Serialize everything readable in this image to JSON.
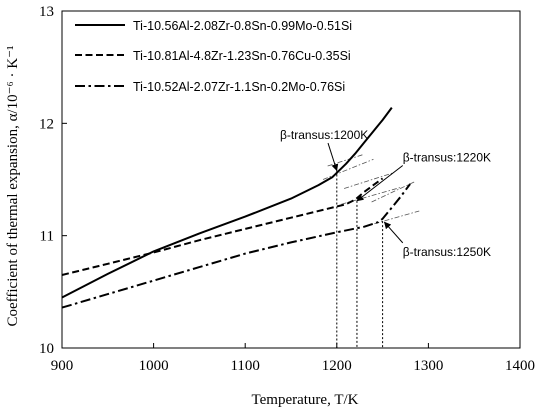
{
  "chart_data": {
    "type": "line",
    "xlabel": "Temperature, T/K",
    "ylabel": "Coefficient of thermal expansion, α/10⁻⁶ · K⁻¹",
    "xlim": [
      900,
      1400
    ],
    "ylim": [
      10,
      13
    ],
    "xticks": [
      900,
      1000,
      1100,
      1200,
      1300,
      1400
    ],
    "yticks": [
      10,
      11,
      12,
      13
    ],
    "grid": false,
    "legend_position": "top-left",
    "series": [
      {
        "name": "Ti-10.56Al-2.08Zr-0.8Sn-0.99Mo-0.51Si",
        "style": "solid",
        "x": [
          900,
          950,
          1000,
          1050,
          1100,
          1150,
          1180,
          1195,
          1200,
          1210,
          1220,
          1230,
          1240,
          1250,
          1260
        ],
        "y": [
          10.45,
          10.66,
          10.86,
          11.02,
          11.17,
          11.33,
          11.45,
          11.52,
          11.56,
          11.64,
          11.73,
          11.83,
          11.93,
          12.03,
          12.14
        ]
      },
      {
        "name": "Ti-10.81Al-4.8Zr-1.23Sn-0.76Cu-0.35Si",
        "style": "dashed",
        "x": [
          900,
          950,
          1000,
          1050,
          1100,
          1150,
          1200,
          1210,
          1220,
          1230,
          1240,
          1250
        ],
        "y": [
          10.65,
          10.75,
          10.85,
          10.96,
          11.06,
          11.16,
          11.26,
          11.28,
          11.32,
          11.39,
          11.45,
          11.51
        ]
      },
      {
        "name": "Ti-10.52Al-2.07Zr-1.1Sn-0.2Mo-0.76Si",
        "style": "dashdot",
        "x": [
          900,
          950,
          1000,
          1050,
          1100,
          1150,
          1200,
          1230,
          1245,
          1250,
          1260,
          1270,
          1280
        ],
        "y": [
          10.36,
          10.48,
          10.6,
          10.72,
          10.84,
          10.94,
          11.03,
          11.08,
          11.12,
          11.15,
          11.25,
          11.35,
          11.46
        ]
      }
    ],
    "extrapolations": [
      {
        "x": [
          1185,
          1240
        ],
        "y": [
          11.5,
          11.68
        ]
      },
      {
        "x": [
          1190,
          1228
        ],
        "y": [
          11.62,
          11.72
        ]
      },
      {
        "x": [
          1205,
          1270
        ],
        "y": [
          11.28,
          11.43
        ]
      },
      {
        "x": [
          1208,
          1262
        ],
        "y": [
          11.42,
          11.56
        ]
      },
      {
        "x": [
          1230,
          1290
        ],
        "y": [
          11.08,
          11.22
        ]
      },
      {
        "x": [
          1238,
          1285
        ],
        "y": [
          11.3,
          11.48
        ]
      }
    ],
    "transus_markers": [
      {
        "x": 1200,
        "y": 11.58
      },
      {
        "x": 1222,
        "y": 11.31
      },
      {
        "x": 1250,
        "y": 11.13
      }
    ],
    "annotations": [
      {
        "text": "β-transus:1200K",
        "target_x": 1200,
        "target_y": 11.58,
        "text_x": 1138,
        "text_y": 11.86
      },
      {
        "text": "β-transus:1220K",
        "target_x": 1222,
        "target_y": 11.31,
        "text_x": 1272,
        "text_y": 11.66
      },
      {
        "text": "β-transus:1250K",
        "target_x": 1252,
        "target_y": 11.12,
        "text_x": 1272,
        "text_y": 10.82
      }
    ]
  }
}
